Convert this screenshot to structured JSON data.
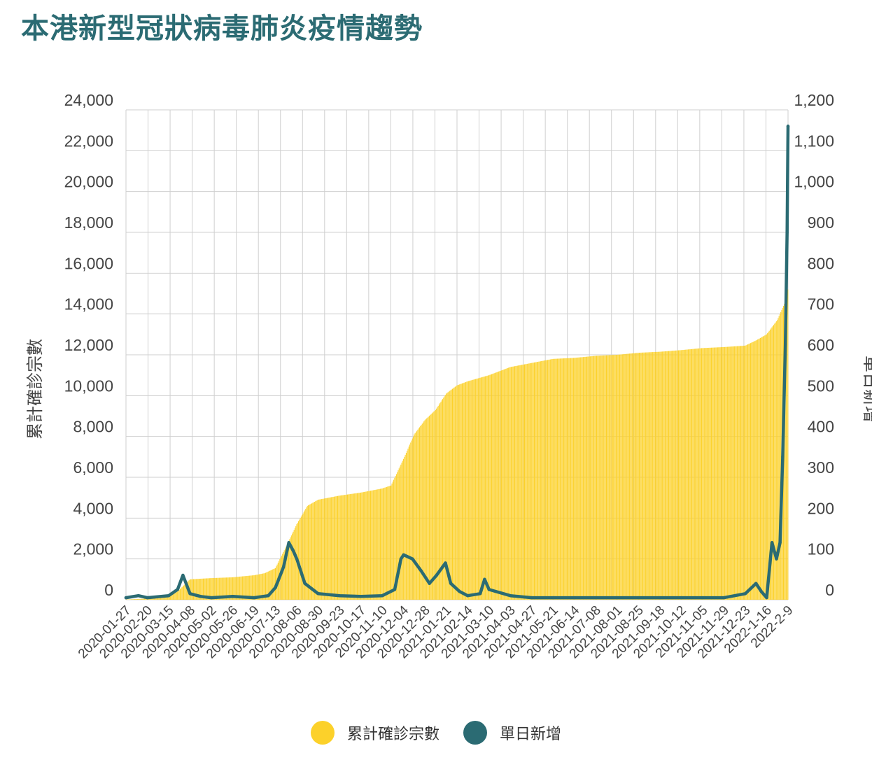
{
  "title": "本港新型冠狀病毒肺炎疫情趨勢",
  "colors": {
    "cumulative": "#fcd12a",
    "daily": "#2b6b73",
    "grid": "#cfcfcf",
    "title": "#2b6b73"
  },
  "legend": {
    "cumulative_label": "累計確診宗數",
    "daily_label": "單日新增"
  },
  "chart_data": {
    "type": "bar+line",
    "ylabel_left": "累計確診宗數",
    "ylabel_right": "單日新增",
    "ylim_left": [
      0,
      24000
    ],
    "ylim_right": [
      0,
      1200
    ],
    "yticks_left": [
      "0",
      "2,000",
      "4,000",
      "6,000",
      "8,000",
      "10,000",
      "12,000",
      "14,000",
      "16,000",
      "18,000",
      "20,000",
      "22,000",
      "24,000"
    ],
    "yticks_right": [
      "0",
      "100",
      "200",
      "300",
      "400",
      "500",
      "600",
      "700",
      "800",
      "900",
      "1,000",
      "1,100",
      "1,200"
    ],
    "xticks": [
      "2020-01-27",
      "2020-02-20",
      "2020-03-15",
      "2020-04-08",
      "2020-05-02",
      "2020-05-26",
      "2020-06-19",
      "2020-07-13",
      "2020-08-06",
      "2020-08-30",
      "2020-09-23",
      "2020-10-17",
      "2020-11-10",
      "2020-12-04",
      "2020-12-28",
      "2021-01-21",
      "2021-02-14",
      "2021-03-10",
      "2021-04-03",
      "2021-04-27",
      "2021-05-21",
      "2021-06-14",
      "2021-07-08",
      "2021-08-01",
      "2021-08-25",
      "2021-09-18",
      "2021-10-12",
      "2021-11-05",
      "2021-11-29",
      "2021-12-23",
      "2022-1-16",
      "2022-2-9"
    ],
    "grid": true,
    "legend_position": "bottom",
    "series": [
      {
        "name": "累計確診宗數",
        "type": "bar",
        "axis": "left",
        "x": [
          "2020-01-27",
          "2020-02-20",
          "2020-03-15",
          "2020-03-25",
          "2020-04-08",
          "2020-05-02",
          "2020-05-26",
          "2020-06-19",
          "2020-07-01",
          "2020-07-13",
          "2020-07-25",
          "2020-08-06",
          "2020-08-18",
          "2020-08-30",
          "2020-09-23",
          "2020-10-17",
          "2020-11-10",
          "2020-11-20",
          "2020-12-04",
          "2020-12-16",
          "2020-12-28",
          "2021-01-09",
          "2021-01-21",
          "2021-02-02",
          "2021-02-14",
          "2021-03-10",
          "2021-04-03",
          "2021-04-27",
          "2021-05-21",
          "2021-06-14",
          "2021-07-08",
          "2021-08-01",
          "2021-08-25",
          "2021-09-18",
          "2021-10-12",
          "2021-11-05",
          "2021-11-29",
          "2021-12-23",
          "2022-01-04",
          "2022-01-16",
          "2022-01-28",
          "2022-02-05",
          "2022-02-09"
        ],
        "values": [
          10,
          60,
          150,
          400,
          1000,
          1060,
          1100,
          1200,
          1300,
          1550,
          2600,
          3700,
          4600,
          4900,
          5100,
          5250,
          5450,
          5600,
          6900,
          8100,
          8800,
          9300,
          10100,
          10500,
          10700,
          11000,
          11400,
          11600,
          11800,
          11850,
          11950,
          12000,
          12100,
          12150,
          12230,
          12330,
          12380,
          12450,
          12700,
          13000,
          13700,
          14500,
          15200
        ]
      },
      {
        "name": "單日新增",
        "type": "line",
        "axis": "right",
        "x": [
          "2020-01-27",
          "2020-02-10",
          "2020-02-20",
          "2020-03-15",
          "2020-03-25",
          "2020-03-31",
          "2020-04-08",
          "2020-04-20",
          "2020-05-02",
          "2020-05-26",
          "2020-06-19",
          "2020-07-05",
          "2020-07-13",
          "2020-07-22",
          "2020-07-28",
          "2020-08-02",
          "2020-08-06",
          "2020-08-15",
          "2020-08-30",
          "2020-09-23",
          "2020-10-17",
          "2020-11-10",
          "2020-11-24",
          "2020-12-01",
          "2020-12-04",
          "2020-12-14",
          "2020-12-24",
          "2021-01-02",
          "2021-01-10",
          "2021-01-20",
          "2021-01-26",
          "2021-02-05",
          "2021-02-14",
          "2021-02-28",
          "2021-03-05",
          "2021-03-10",
          "2021-04-03",
          "2021-04-27",
          "2021-05-21",
          "2021-06-14",
          "2021-07-08",
          "2021-08-01",
          "2021-08-25",
          "2021-09-18",
          "2021-10-12",
          "2021-11-05",
          "2021-11-29",
          "2021-12-23",
          "2022-01-04",
          "2022-01-10",
          "2022-01-16",
          "2022-01-22",
          "2022-01-27",
          "2022-01-31",
          "2022-02-03",
          "2022-02-06",
          "2022-02-08",
          "2022-02-09"
        ],
        "values": [
          5,
          10,
          5,
          10,
          25,
          60,
          15,
          8,
          5,
          8,
          5,
          10,
          30,
          80,
          140,
          120,
          100,
          40,
          15,
          10,
          8,
          10,
          25,
          100,
          110,
          100,
          70,
          40,
          60,
          90,
          40,
          20,
          10,
          15,
          50,
          25,
          10,
          5,
          5,
          5,
          5,
          5,
          5,
          5,
          5,
          5,
          5,
          15,
          40,
          20,
          5,
          140,
          100,
          140,
          350,
          625,
          900,
          1160
        ]
      }
    ]
  }
}
